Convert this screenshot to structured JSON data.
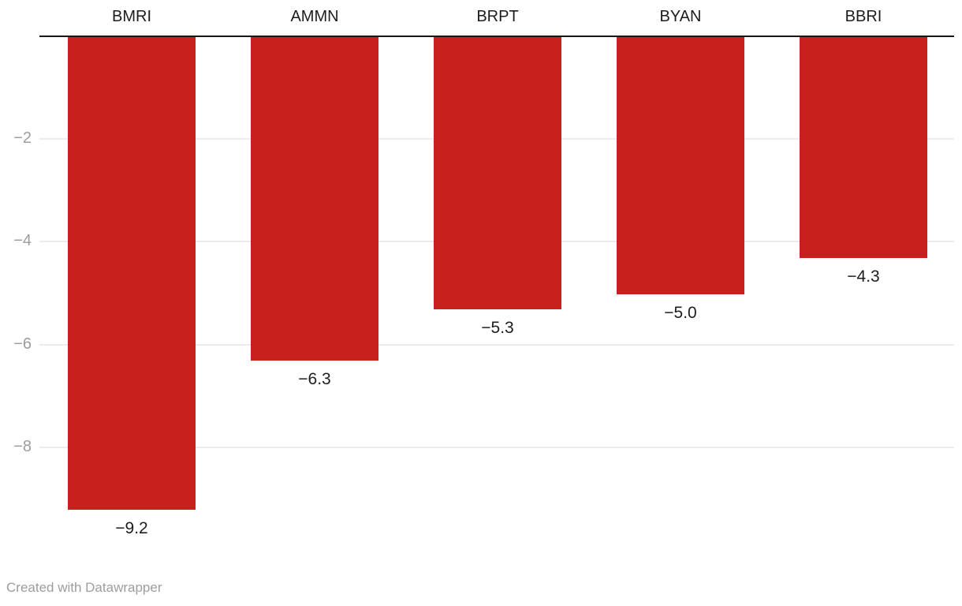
{
  "chart_data": {
    "type": "bar",
    "orientation": "vertical",
    "categories": [
      "BMRI",
      "AMMN",
      "BRPT",
      "BYAN",
      "BBRI"
    ],
    "values": [
      -9.2,
      -6.3,
      -5.3,
      -5.0,
      -4.3
    ],
    "value_labels": [
      "−9.2",
      "−6.3",
      "−5.3",
      "−5.0",
      "−4.3"
    ],
    "y_ticks": [
      -2,
      -4,
      -6,
      -8
    ],
    "y_tick_labels": [
      "−2",
      "−4",
      "−6",
      "−8"
    ],
    "ylim": [
      -10,
      0
    ],
    "grid": true,
    "legend": "none",
    "bar_color": "#c8201d",
    "zero_line_color": "#18181a",
    "gridline_color": "#ebebeb",
    "tick_label_color": "#9c9c9c",
    "label_color": "#1d1d1d"
  },
  "footer": {
    "attribution": "Created with Datawrapper"
  }
}
